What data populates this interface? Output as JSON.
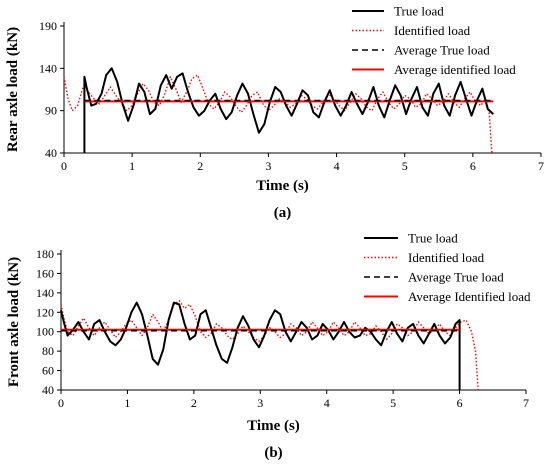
{
  "chart_data": [
    {
      "type": "line",
      "caption": "(a)",
      "xlabel": "Time (s)",
      "ylabel": "Rear axle load (kN)",
      "xlim": [
        0,
        7
      ],
      "ylim": [
        40,
        190
      ],
      "xticks": [
        "0",
        "1",
        "2",
        "3",
        "4",
        "5",
        "6",
        "7"
      ],
      "yticks": [
        "40",
        "90",
        "140",
        "190"
      ],
      "grid": false,
      "legend_position": "top-right",
      "series": [
        {
          "name": "True load",
          "color": "#000000",
          "style": "solid",
          "x": [
            0.3,
            0.3,
            0.33,
            0.4,
            0.47,
            0.55,
            0.62,
            0.7,
            0.78,
            0.86,
            0.94,
            1.02,
            1.1,
            1.18,
            1.26,
            1.34,
            1.42,
            1.5,
            1.58,
            1.66,
            1.74,
            1.82,
            1.9,
            1.98,
            2.06,
            2.14,
            2.22,
            2.3,
            2.38,
            2.46,
            2.54,
            2.62,
            2.7,
            2.78,
            2.86,
            2.94,
            3.02,
            3.1,
            3.18,
            3.26,
            3.34,
            3.42,
            3.5,
            3.58,
            3.66,
            3.74,
            3.82,
            3.9,
            3.98,
            4.06,
            4.14,
            4.22,
            4.3,
            4.38,
            4.46,
            4.54,
            4.62,
            4.7,
            4.78,
            4.86,
            4.94,
            5.02,
            5.1,
            5.18,
            5.26,
            5.34,
            5.42,
            5.5,
            5.58,
            5.66,
            5.74,
            5.82,
            5.9,
            5.98,
            6.06,
            6.14,
            6.22,
            6.3
          ],
          "y": [
            40,
            130,
            118,
            96,
            98,
            110,
            132,
            140,
            124,
            98,
            78,
            96,
            122,
            112,
            86,
            92,
            120,
            132,
            116,
            130,
            134,
            112,
            94,
            84,
            90,
            102,
            110,
            92,
            80,
            88,
            108,
            122,
            110,
            86,
            64,
            74,
            100,
            118,
            112,
            96,
            84,
            98,
            114,
            108,
            88,
            82,
            100,
            114,
            96,
            84,
            96,
            112,
            98,
            86,
            100,
            118,
            96,
            82,
            102,
            120,
            108,
            86,
            104,
            118,
            94,
            84,
            110,
            122,
            96,
            84,
            108,
            124,
            104,
            84,
            102,
            116,
            92,
            86
          ]
        },
        {
          "name": "Identified load",
          "color": "#ff0000",
          "style": "dotted",
          "x": [
            0.0,
            0.06,
            0.12,
            0.2,
            0.28,
            0.36,
            0.44,
            0.52,
            0.6,
            0.68,
            0.76,
            0.84,
            0.92,
            1.0,
            1.08,
            1.16,
            1.24,
            1.32,
            1.4,
            1.48,
            1.56,
            1.64,
            1.72,
            1.8,
            1.88,
            1.96,
            2.04,
            2.12,
            2.2,
            2.28,
            2.36,
            2.44,
            2.52,
            2.6,
            2.68,
            2.76,
            2.84,
            2.92,
            3.0,
            3.08,
            3.16,
            3.24,
            3.32,
            3.4,
            3.48,
            3.56,
            3.64,
            3.72,
            3.8,
            3.88,
            3.96,
            4.04,
            4.12,
            4.2,
            4.28,
            4.36,
            4.44,
            4.52,
            4.6,
            4.68,
            4.76,
            4.84,
            4.92,
            5.0,
            5.08,
            5.16,
            5.24,
            5.32,
            5.4,
            5.48,
            5.56,
            5.64,
            5.72,
            5.8,
            5.88,
            5.96,
            6.04,
            6.12,
            6.18,
            6.24,
            6.28
          ],
          "y": [
            130,
            104,
            90,
            96,
            118,
            112,
            104,
            98,
            108,
            118,
            108,
            100,
            90,
            96,
            110,
            122,
            114,
            100,
            96,
            110,
            130,
            116,
            100,
            112,
            128,
            132,
            116,
            98,
            92,
            100,
            112,
            106,
            96,
            88,
            96,
            108,
            112,
            98,
            90,
            96,
            104,
            100,
            94,
            98,
            108,
            104,
            96,
            92,
            100,
            110,
            104,
            96,
            90,
            100,
            110,
            104,
            94,
            90,
            104,
            112,
            100,
            92,
            98,
            108,
            104,
            94,
            98,
            110,
            104,
            96,
            100,
            110,
            100,
            94,
            104,
            112,
            100,
            96,
            104,
            88,
            40
          ]
        },
        {
          "name": "Average True load",
          "color": "#000000",
          "style": "dashed",
          "x": [
            0.3,
            6.3
          ],
          "y": [
            102,
            102
          ]
        },
        {
          "name": "Average identified load",
          "color": "#ff0000",
          "style": "solid-thick",
          "x": [
            0.3,
            6.3
          ],
          "y": [
            101,
            101
          ]
        }
      ]
    },
    {
      "type": "line",
      "caption": "(b)",
      "xlabel": "Time (s)",
      "ylabel": "Front axle load (kN)",
      "xlim": [
        0,
        7
      ],
      "ylim": [
        40,
        190
      ],
      "xticks": [
        "0",
        "1",
        "2",
        "3",
        "4",
        "5",
        "6",
        "7"
      ],
      "yticks": [
        "40",
        "60",
        "80",
        "100",
        "120",
        "140",
        "160",
        "180"
      ],
      "grid": false,
      "legend_position": "top-right",
      "series": [
        {
          "name": "True load",
          "color": "#000000",
          "style": "solid",
          "x": [
            0.0,
            0.05,
            0.1,
            0.18,
            0.26,
            0.34,
            0.42,
            0.5,
            0.58,
            0.66,
            0.74,
            0.82,
            0.9,
            0.98,
            1.06,
            1.14,
            1.22,
            1.3,
            1.38,
            1.46,
            1.54,
            1.62,
            1.7,
            1.78,
            1.86,
            1.94,
            2.02,
            2.1,
            2.18,
            2.26,
            2.34,
            2.42,
            2.5,
            2.58,
            2.66,
            2.74,
            2.82,
            2.9,
            2.98,
            3.06,
            3.14,
            3.22,
            3.3,
            3.38,
            3.46,
            3.54,
            3.62,
            3.7,
            3.78,
            3.86,
            3.94,
            4.02,
            4.1,
            4.18,
            4.26,
            4.34,
            4.42,
            4.5,
            4.58,
            4.66,
            4.74,
            4.82,
            4.9,
            4.98,
            5.06,
            5.14,
            5.22,
            5.3,
            5.38,
            5.46,
            5.54,
            5.62,
            5.7,
            5.78,
            5.86,
            5.94,
            6.0,
            6.0
          ],
          "y": [
            122,
            108,
            96,
            102,
            110,
            100,
            92,
            108,
            112,
            100,
            90,
            86,
            92,
            104,
            120,
            130,
            118,
            96,
            72,
            66,
            82,
            112,
            130,
            128,
            108,
            92,
            96,
            118,
            122,
            104,
            86,
            72,
            68,
            84,
            104,
            116,
            106,
            92,
            84,
            96,
            112,
            122,
            118,
            100,
            90,
            100,
            110,
            104,
            92,
            96,
            108,
            102,
            92,
            100,
            110,
            100,
            94,
            96,
            104,
            100,
            92,
            86,
            100,
            110,
            98,
            90,
            104,
            108,
            96,
            88,
            98,
            108,
            96,
            88,
            94,
            108,
            112,
            40
          ]
        },
        {
          "name": "Identified load",
          "color": "#ff0000",
          "style": "dotted",
          "x": [
            0.0,
            0.05,
            0.1,
            0.18,
            0.26,
            0.34,
            0.42,
            0.5,
            0.58,
            0.66,
            0.74,
            0.82,
            0.9,
            0.98,
            1.06,
            1.14,
            1.22,
            1.3,
            1.38,
            1.46,
            1.54,
            1.62,
            1.7,
            1.78,
            1.86,
            1.94,
            2.02,
            2.1,
            2.18,
            2.26,
            2.34,
            2.42,
            2.5,
            2.58,
            2.66,
            2.74,
            2.82,
            2.9,
            2.98,
            3.06,
            3.14,
            3.22,
            3.3,
            3.38,
            3.46,
            3.54,
            3.62,
            3.7,
            3.78,
            3.86,
            3.94,
            4.02,
            4.1,
            4.18,
            4.26,
            4.34,
            4.42,
            4.5,
            4.58,
            4.66,
            4.74,
            4.82,
            4.9,
            4.98,
            5.06,
            5.14,
            5.22,
            5.3,
            5.38,
            5.46,
            5.54,
            5.62,
            5.7,
            5.78,
            5.86,
            5.94,
            6.02,
            6.1,
            6.18,
            6.24,
            6.28
          ],
          "y": [
            128,
            112,
            100,
            96,
            106,
            114,
            104,
            96,
            104,
            110,
            102,
            94,
            100,
            108,
            112,
            104,
            96,
            104,
            118,
            110,
            100,
            112,
            128,
            132,
            124,
            128,
            116,
            100,
            94,
            98,
            108,
            104,
            96,
            92,
            98,
            106,
            100,
            94,
            90,
            96,
            104,
            100,
            94,
            98,
            108,
            104,
            96,
            100,
            110,
            104,
            96,
            100,
            110,
            104,
            96,
            100,
            110,
            104,
            96,
            98,
            106,
            100,
            92,
            98,
            108,
            104,
            96,
            100,
            110,
            104,
            98,
            102,
            108,
            100,
            96,
            104,
            110,
            112,
            100,
            80,
            40
          ]
        },
        {
          "name": "Average True load",
          "color": "#000000",
          "style": "dashed",
          "x": [
            0.0,
            6.0
          ],
          "y": [
            101,
            101
          ]
        },
        {
          "name": "Average Identified load",
          "color": "#ff0000",
          "style": "solid-thick",
          "x": [
            0.0,
            6.0
          ],
          "y": [
            102,
            102
          ]
        }
      ]
    }
  ]
}
